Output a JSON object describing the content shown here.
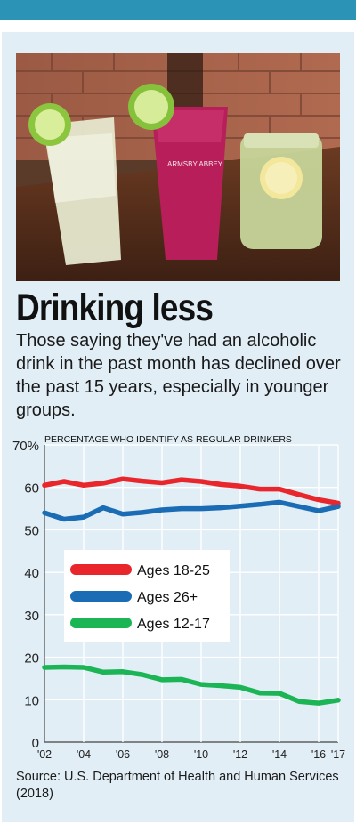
{
  "header": {
    "title": "Drinking less",
    "intro": "Those saying they've had an alcoholic drink in the past month has declined over the past 15 years, especially in younger groups."
  },
  "photo": {
    "glass_text": "ARMSBY ABBEY"
  },
  "source": "Source: U.S. Department of Health and Human Services (2018)",
  "chart_data": {
    "type": "line",
    "title": "PERCENTAGE WHO IDENTIFY AS REGULAR DRINKERS",
    "x": [
      2002,
      2003,
      2004,
      2005,
      2006,
      2007,
      2008,
      2009,
      2010,
      2011,
      2012,
      2013,
      2014,
      2015,
      2016,
      2017
    ],
    "x_tick_values": [
      2002,
      2004,
      2006,
      2008,
      2010,
      2012,
      2014,
      2016,
      2017
    ],
    "x_tick_labels": [
      "'02",
      "'04",
      "'06",
      "'08",
      "'10",
      "'12",
      "'14",
      "'16",
      "'17"
    ],
    "y_tick_values": [
      0,
      10,
      20,
      30,
      40,
      50,
      60,
      70
    ],
    "y_tick_labels": [
      "0",
      "10",
      "20",
      "30",
      "40",
      "50",
      "60",
      "70%"
    ],
    "ylim": [
      0,
      70
    ],
    "xlim": [
      2002,
      2017
    ],
    "grid": true,
    "legend_placement": "center-left",
    "series": [
      {
        "name": "Ages 18-25",
        "color": "#e8262b",
        "values": [
          60.5,
          61.4,
          60.5,
          61,
          62,
          61.5,
          61.1,
          61.8,
          61.4,
          60.7,
          60.3,
          59.6,
          59.6,
          58.3,
          57.1,
          56.3
        ]
      },
      {
        "name": "Ages 26+",
        "color": "#1a6cb4",
        "values": [
          54,
          52.5,
          53,
          55.2,
          53.7,
          54.1,
          54.7,
          55,
          55,
          55.2,
          55.6,
          56,
          56.5,
          55.5,
          54.5,
          55.5
        ]
      },
      {
        "name": "Ages 12-17",
        "color": "#1cb555",
        "values": [
          17.6,
          17.7,
          17.6,
          16.5,
          16.6,
          15.9,
          14.7,
          14.8,
          13.6,
          13.3,
          12.9,
          11.6,
          11.5,
          9.6,
          9.2,
          9.9
        ]
      }
    ]
  }
}
